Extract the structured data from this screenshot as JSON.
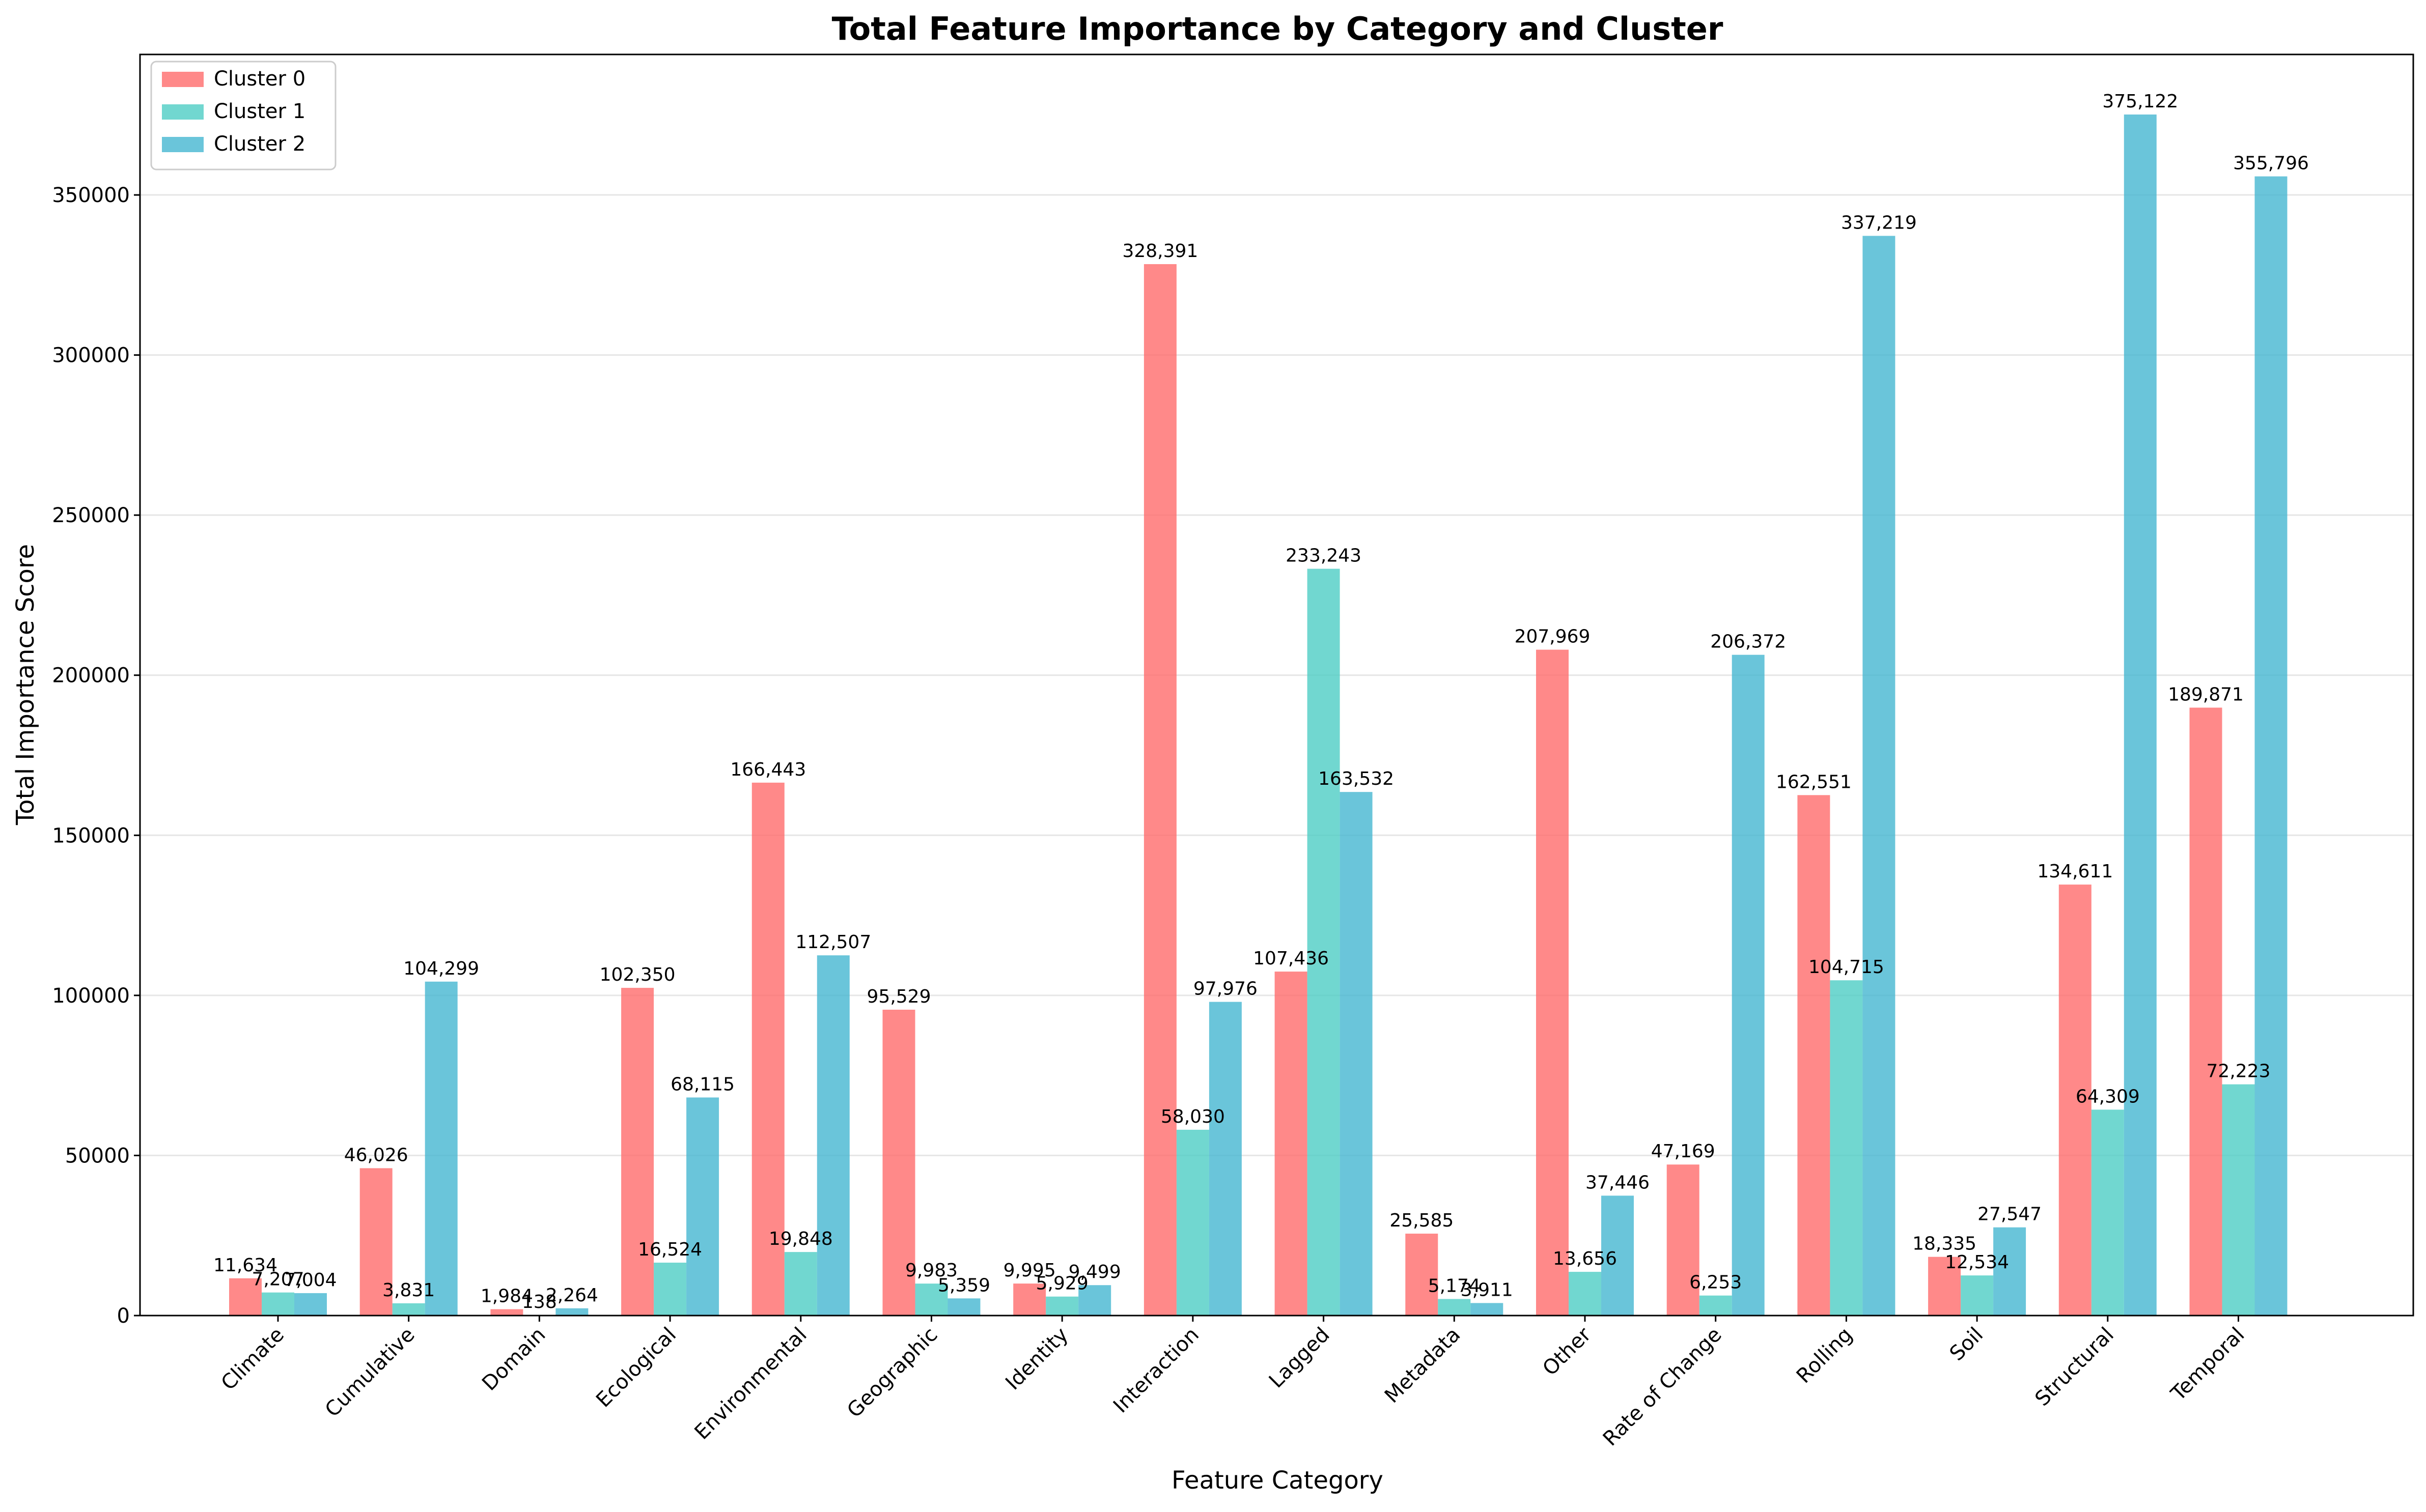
{
  "chart_data": {
    "type": "bar",
    "title": "Total Feature Importance by Category and Cluster",
    "xlabel": "Feature Category",
    "ylabel": "Total Importance Score",
    "ylim": [
      0,
      393878
    ],
    "yticks": [
      0,
      50000,
      100000,
      150000,
      200000,
      250000,
      300000,
      350000
    ],
    "grid": "horizontal",
    "legend_position": "top-left",
    "categories": [
      "Climate",
      "Cumulative",
      "Domain",
      "Ecological",
      "Environmental",
      "Geographic",
      "Identity",
      "Interaction",
      "Lagged",
      "Metadata",
      "Other",
      "Rate of Change",
      "Rolling",
      "Soil",
      "Structural",
      "Temporal"
    ],
    "series": [
      {
        "name": "Cluster 0",
        "color": "#ff6b6b",
        "values": [
          11634,
          46026,
          1984,
          102350,
          166443,
          95529,
          9995,
          328391,
          107436,
          25585,
          207969,
          47169,
          162551,
          18335,
          134611,
          189871
        ],
        "labels": [
          "11,634",
          "46,026",
          "1,984",
          "102,350",
          "166,443",
          "95,529",
          "9,995",
          "328,391",
          "107,436",
          "25,585",
          "207,969",
          "47,169",
          "162,551",
          "18,335",
          "134,611",
          "189,871"
        ]
      },
      {
        "name": "Cluster 1",
        "color": "#4ecdc4",
        "values": [
          7207,
          3831,
          138,
          16524,
          19848,
          9983,
          5929,
          58030,
          233243,
          5174,
          13656,
          6253,
          104715,
          12534,
          64309,
          72223
        ],
        "labels": [
          "7,207",
          "3,831",
          "138",
          "16,524",
          "19,848",
          "9,983",
          "5,929",
          "58,030",
          "233,243",
          "5,174",
          "13,656",
          "6,253",
          "104,715",
          "12,534",
          "64,309",
          "72,223"
        ]
      },
      {
        "name": "Cluster 2",
        "color": "#45b7d1",
        "values": [
          7004,
          104299,
          2264,
          68115,
          112507,
          5359,
          9499,
          97976,
          163532,
          3911,
          37446,
          206372,
          337219,
          27547,
          375122,
          355796
        ],
        "labels": [
          "7,004",
          "104,299",
          "2,264",
          "68,115",
          "112,507",
          "5,359",
          "9,499",
          "97,976",
          "163,532",
          "3,911",
          "37,446",
          "206,372",
          "337,219",
          "27,547",
          "375,122",
          "355,796"
        ]
      }
    ]
  }
}
